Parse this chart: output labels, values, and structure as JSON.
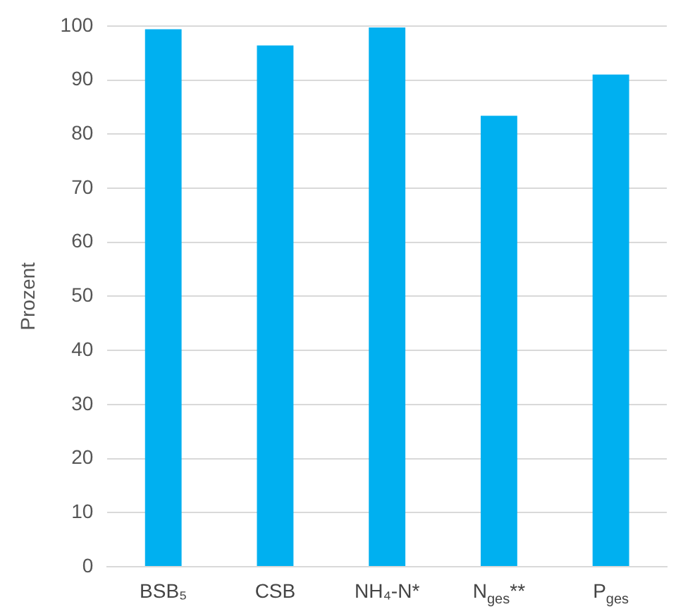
{
  "chart_data": {
    "type": "bar",
    "ylabel": "Prozent",
    "categories": [
      "BSB₅",
      "CSB",
      "NH₄-N*",
      "N$_{ges}$**",
      "P$_{ges}$"
    ],
    "values": [
      99.4,
      96.4,
      99.7,
      83.4,
      91
    ],
    "color": "#00b0f0",
    "ylim": [
      0,
      100
    ],
    "yticks": [
      0,
      10,
      20,
      30,
      40,
      50,
      60,
      70,
      80,
      90,
      100
    ],
    "grid": "y",
    "legend": false
  }
}
